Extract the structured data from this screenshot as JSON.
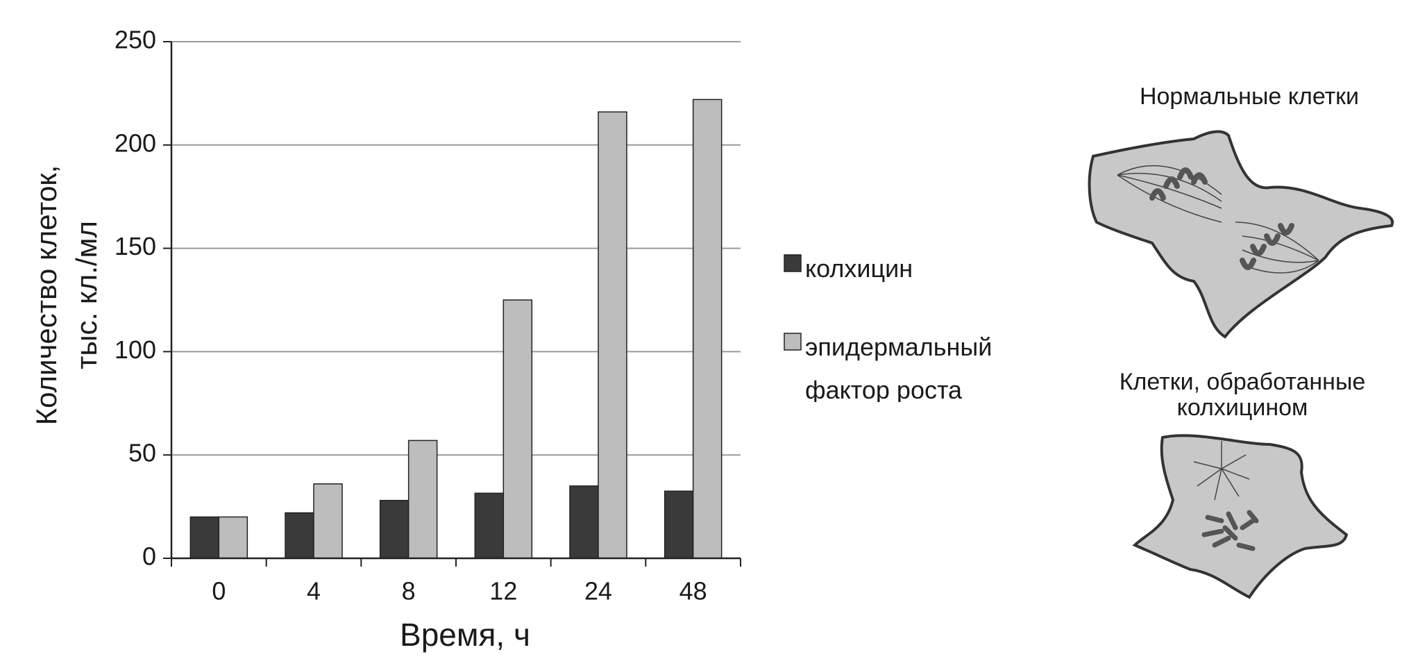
{
  "chart_data": {
    "type": "bar",
    "x_label": "Время, ч",
    "y_label": [
      "Количество клеток,",
      "тыс. кл./мл"
    ],
    "categories": [
      "0",
      "4",
      "8",
      "12",
      "24",
      "48"
    ],
    "series": [
      {
        "name": "колхицин",
        "color": "#3a3a3a",
        "values": [
          20,
          22,
          28,
          31.5,
          35,
          32.5
        ]
      },
      {
        "name": "эпидермальный фактор роста",
        "color": "#bdbdbd",
        "values": [
          20,
          36,
          57,
          125,
          216,
          222
        ]
      }
    ],
    "ylim": [
      0,
      250
    ],
    "yticks": [
      0,
      50,
      100,
      150,
      200,
      250
    ],
    "grid": true
  },
  "illustrations": {
    "normal_caption": "Нормальные клетки",
    "treated_caption": "Клетки, обработанные колхицином"
  }
}
